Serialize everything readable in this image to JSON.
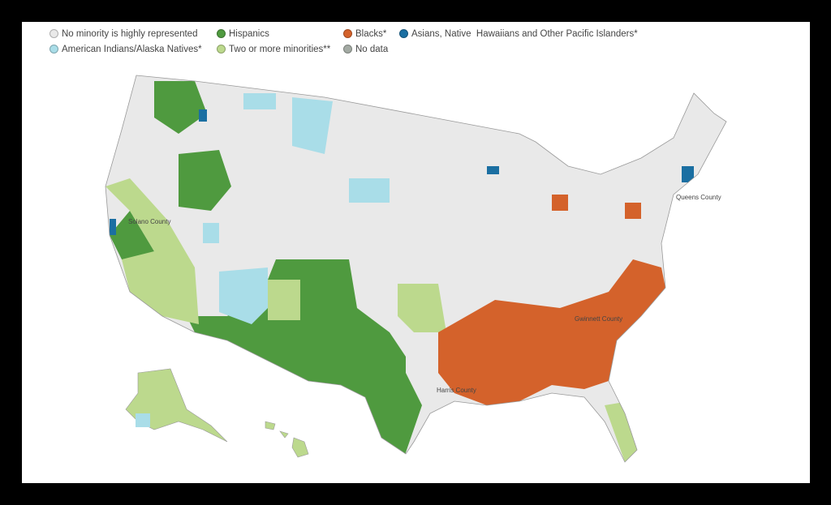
{
  "legend": [
    {
      "label": "No minority is highly represented",
      "color": "#e9e9e9"
    },
    {
      "label": "Hispanics",
      "color": "#4f9a3f"
    },
    {
      "label": "Blacks*",
      "color": "#d4622b"
    },
    {
      "label": "Asians, Native  Hawaiians and Other Pacific Islanders*",
      "color": "#1b6fa2"
    },
    {
      "label": "American Indians/Alaska Natives*",
      "color": "#a9dde8"
    },
    {
      "label": "Two or more minorities**",
      "color": "#bcd98d"
    },
    {
      "label": "No data",
      "color": "#a3aaa3"
    }
  ],
  "map_labels": [
    "Solano County",
    "Queens County",
    "Gwinnett County",
    "Harris County"
  ]
}
